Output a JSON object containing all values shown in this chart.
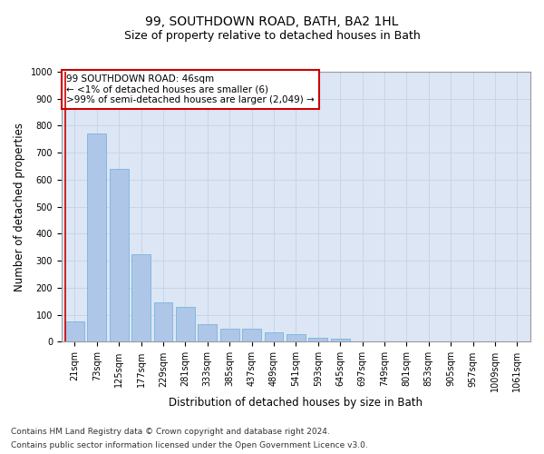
{
  "title": "99, SOUTHDOWN ROAD, BATH, BA2 1HL",
  "subtitle": "Size of property relative to detached houses in Bath",
  "xlabel": "Distribution of detached houses by size in Bath",
  "ylabel": "Number of detached properties",
  "footnote1": "Contains HM Land Registry data © Crown copyright and database right 2024.",
  "footnote2": "Contains public sector information licensed under the Open Government Licence v3.0.",
  "annotation_title": "99 SOUTHDOWN ROAD: 46sqm",
  "annotation_line2": "← <1% of detached houses are smaller (6)",
  "annotation_line3": ">99% of semi-detached houses are larger (2,049) →",
  "bar_color": "#aec6e8",
  "bar_edge_color": "#6baed6",
  "annotation_box_color": "#ffffff",
  "annotation_box_edge": "#cc0000",
  "grid_color": "#c8d4e8",
  "background_color": "#dce6f5",
  "categories": [
    "21sqm",
    "73sqm",
    "125sqm",
    "177sqm",
    "229sqm",
    "281sqm",
    "333sqm",
    "385sqm",
    "437sqm",
    "489sqm",
    "541sqm",
    "593sqm",
    "645sqm",
    "697sqm",
    "749sqm",
    "801sqm",
    "853sqm",
    "905sqm",
    "957sqm",
    "1009sqm",
    "1061sqm"
  ],
  "values": [
    75,
    770,
    640,
    325,
    145,
    130,
    65,
    50,
    50,
    35,
    30,
    15,
    10,
    0,
    0,
    0,
    0,
    0,
    0,
    0,
    0
  ],
  "ylim": [
    0,
    1000
  ],
  "yticks": [
    0,
    100,
    200,
    300,
    400,
    500,
    600,
    700,
    800,
    900,
    1000
  ],
  "title_fontsize": 10,
  "subtitle_fontsize": 9,
  "axis_label_fontsize": 8.5,
  "tick_fontsize": 7,
  "annotation_fontsize": 7.5,
  "footnote_fontsize": 6.5
}
